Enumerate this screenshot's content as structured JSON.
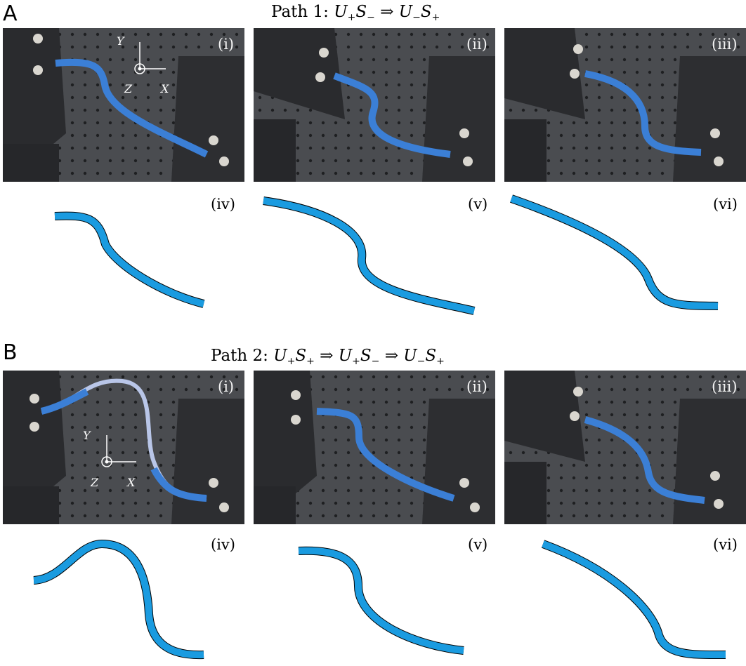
{
  "figure": {
    "panel_a": {
      "letter": "A",
      "title": {
        "prefix": "Path 1:",
        "states": [
          [
            "U",
            "+",
            "S",
            "−"
          ],
          [
            "U",
            "−",
            "S",
            "+"
          ]
        ]
      },
      "photo_labels": [
        "(i)",
        "(ii)",
        "(iii)"
      ],
      "sim_labels": [
        "(iv)",
        "(v)",
        "(vi)"
      ]
    },
    "panel_b": {
      "letter": "B",
      "title": {
        "prefix": "Path 2:",
        "states": [
          [
            "U",
            "+",
            "S",
            "+"
          ],
          [
            "U",
            "+",
            "S",
            "−"
          ],
          [
            "U",
            "−",
            "S",
            "+"
          ]
        ]
      },
      "photo_labels": [
        "(i)",
        "(ii)",
        "(iii)"
      ],
      "sim_labels": [
        "(iv)",
        "(v)",
        "(vi)"
      ]
    },
    "axes": {
      "x": "X",
      "y": "Y",
      "z": "Z"
    },
    "arrow": "⇒",
    "colors": {
      "ribbon": "#1a9be0",
      "ribbon_photo": "#3b7fd6",
      "table": "#4a4c50",
      "plate": "#2a2b2e",
      "screw": "#d9d6cf"
    }
  }
}
